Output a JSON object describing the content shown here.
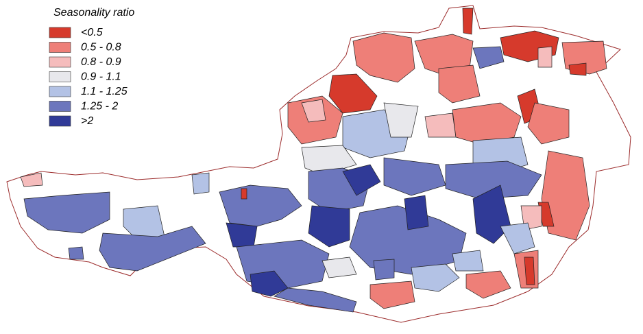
{
  "legend": {
    "title": "Seasonality ratio",
    "items": [
      {
        "label": "<0.5",
        "color": "#d63a2c"
      },
      {
        "label": "0.5 - 0.8",
        "color": "#ee7f78"
      },
      {
        "label": "0.8 - 0.9",
        "color": "#f5bcbc"
      },
      {
        "label": "0.9 - 1.1",
        "color": "#e8e8ec"
      },
      {
        "label": "1.1 - 1.25",
        "color": "#b3c2e5"
      },
      {
        "label": "1.25 - 2",
        "color": "#6c76bd"
      },
      {
        "label": ">2",
        "color": "#303a97"
      }
    ]
  }
}
